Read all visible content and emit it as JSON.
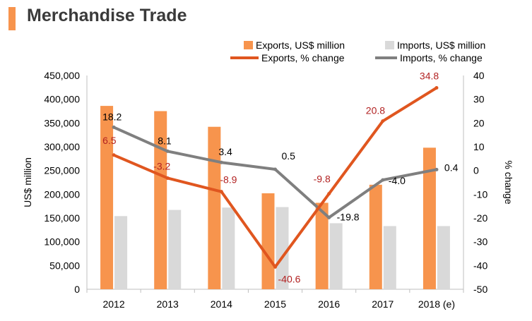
{
  "page": {
    "title": "Merchandise Trade"
  },
  "colors": {
    "exports_bar": "#f7944d",
    "imports_bar": "#d9d9d9",
    "exports_line": "#e0561f",
    "imports_line": "#7f7f7f",
    "exports_label": "#b22222",
    "imports_label": "#000000",
    "axis": "#bfbfbf",
    "text": "#000000"
  },
  "chart_data": {
    "type": "bar",
    "categories": [
      "2012",
      "2013",
      "2014",
      "2015",
      "2016",
      "2017",
      "2018 (e)"
    ],
    "series": [
      {
        "name": "Exports, US$ million",
        "type": "bar",
        "axis": "left",
        "values": [
          386000,
          375000,
          342000,
          202000,
          182000,
          220000,
          298000
        ]
      },
      {
        "name": "Imports, US$ million",
        "type": "bar",
        "axis": "left",
        "values": [
          154000,
          167000,
          172000,
          173000,
          139000,
          133000,
          133000
        ]
      },
      {
        "name": "Exports, % change",
        "type": "line",
        "axis": "right",
        "values": [
          6.5,
          -3.2,
          -8.9,
          -40.6,
          -9.8,
          20.8,
          34.8
        ],
        "labels": [
          "6.5",
          "-3.2",
          "-8.9",
          "-40.6",
          "-9.8",
          "20.8",
          "34.8"
        ]
      },
      {
        "name": "Imports, % change",
        "type": "line",
        "axis": "right",
        "values": [
          18.2,
          8.1,
          3.4,
          0.5,
          -19.8,
          -4.0,
          0.4
        ],
        "labels": [
          "18.2",
          "8.1",
          "3.4",
          "0.5",
          "-19.8",
          "-4.0",
          "0.4"
        ]
      }
    ],
    "ylabel": "US$ million",
    "y2label": "% change",
    "ylim": [
      0,
      450000
    ],
    "y2lim": [
      -50,
      40
    ],
    "yticks": [
      "0",
      "50,000",
      "100,000",
      "150,000",
      "200,000",
      "250,000",
      "300,000",
      "350,000",
      "400,000",
      "450,000"
    ],
    "y2ticks": [
      "-50",
      "-40",
      "-30",
      "-20",
      "-10",
      "0",
      "10",
      "20",
      "30",
      "40"
    ],
    "legend": "top-right",
    "grid": false
  }
}
